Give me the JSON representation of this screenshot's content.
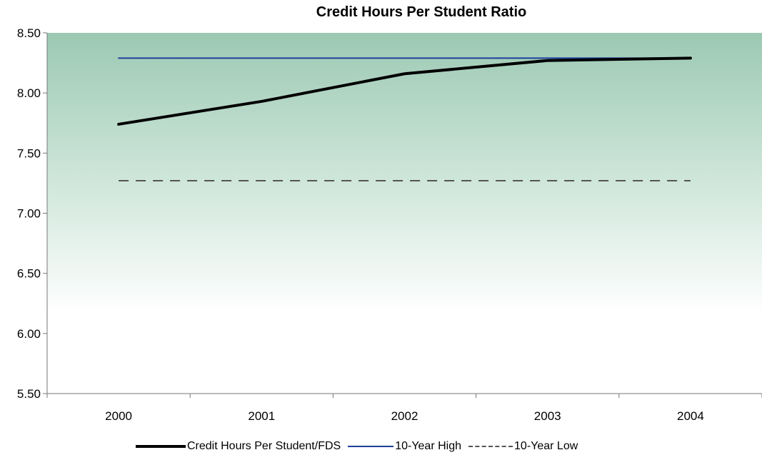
{
  "chart_data": {
    "type": "line",
    "title": "Credit Hours Per Student Ratio",
    "categories": [
      "2000",
      "2001",
      "2002",
      "2003",
      "2004"
    ],
    "ylim": [
      5.5,
      8.5
    ],
    "yticks": [
      "8.50",
      "8.00",
      "7.50",
      "7.00",
      "6.50",
      "6.00",
      "5.50"
    ],
    "grid": false,
    "legend_position": "bottom",
    "series": [
      {
        "name": "Credit Hours Per Student/FDS",
        "values": [
          7.74,
          7.93,
          8.16,
          8.27,
          8.29
        ],
        "color": "#000000",
        "style": "solid-thick"
      },
      {
        "name": "10-Year High",
        "values": [
          8.29,
          8.29,
          8.29,
          8.29,
          8.29
        ],
        "color": "#1f3f9a",
        "style": "solid"
      },
      {
        "name": "10-Year Low",
        "values": [
          7.27,
          7.27,
          7.27,
          7.27,
          7.27
        ],
        "color": "#555555",
        "style": "dashed"
      }
    ],
    "background_gradient": [
      "#9cc9b3",
      "#ffffff"
    ]
  }
}
